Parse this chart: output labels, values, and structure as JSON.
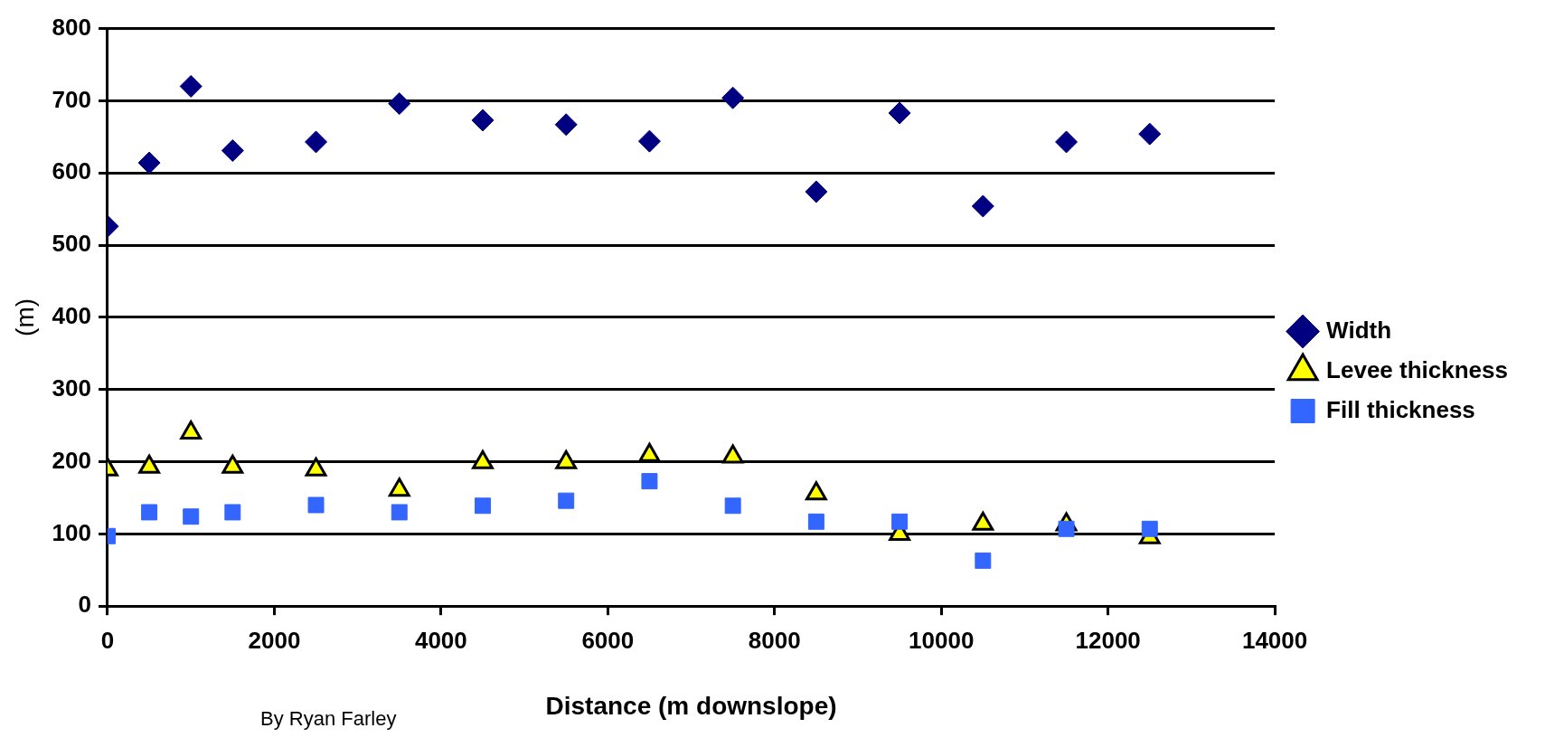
{
  "chart_data": {
    "type": "scatter",
    "xlabel": "Distance (m downslope)",
    "ylabel": "(m)",
    "x": [
      0,
      500,
      1000,
      1500,
      2500,
      3500,
      4500,
      5500,
      6500,
      7500,
      8500,
      9500,
      10500,
      11500,
      12500
    ],
    "series": [
      {
        "name": "Width",
        "color": "#000080",
        "marker": "diamond",
        "values": [
          526,
          614,
          720,
          631,
          643,
          696,
          673,
          667,
          644,
          704,
          574,
          683,
          554,
          643,
          654
        ]
      },
      {
        "name": "Levee thickness",
        "color": "#ffff00",
        "marker": "triangle",
        "values": [
          189,
          193,
          240,
          193,
          189,
          161,
          199,
          199,
          209,
          207,
          156,
          100,
          114,
          113,
          95
        ]
      },
      {
        "name": "Fill thickness",
        "color": "#3366ff",
        "marker": "square",
        "values": [
          97,
          130,
          124,
          130,
          140,
          130,
          139,
          146,
          173,
          139,
          117,
          117,
          63,
          107,
          107
        ]
      }
    ],
    "xlim": [
      0,
      14000
    ],
    "xticks": [
      0,
      2000,
      4000,
      6000,
      8000,
      10000,
      12000,
      14000
    ],
    "ylim": [
      0,
      800
    ],
    "yticks": [
      0,
      100,
      200,
      300,
      400,
      500,
      600,
      700,
      800
    ],
    "grid": "y",
    "legend": "right",
    "annotations": [
      "By Ryan Farley"
    ]
  }
}
